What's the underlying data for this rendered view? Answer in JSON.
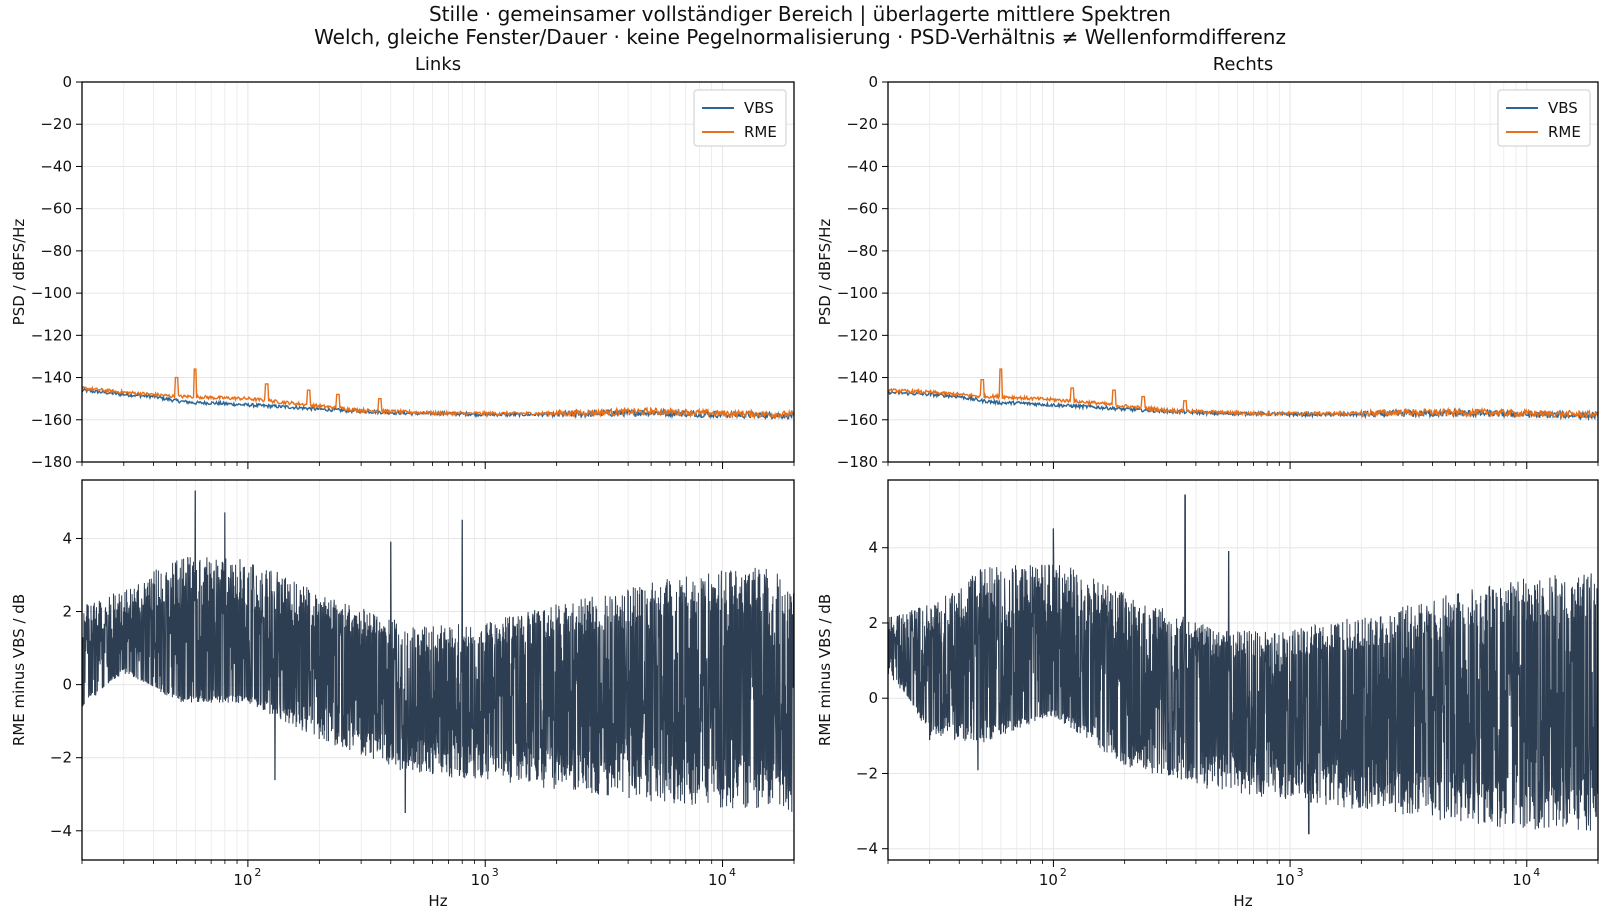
{
  "figure": {
    "title": "Stille · gemeinsamer vollständiger Bereich | überlagerte mittlere Spektren",
    "subtitle": "Welch, gleiche Fenster/Dauer · keine Pegelnormalisierung · PSD-Verhältnis ≠ Wellenformdifferenz"
  },
  "colors": {
    "vbs": "#2c6694",
    "rme": "#e8701a",
    "diff": "#2e3e52",
    "grid": "#e6e6e6"
  },
  "chart_data": [
    {
      "id": "links-psd",
      "type": "line",
      "title": "Links",
      "xlabel": "",
      "ylabel": "PSD / dBFS/Hz",
      "xscale": "log",
      "xlim": [
        20,
        20000
      ],
      "ylim": [
        -180,
        0
      ],
      "yticks": [
        0,
        -20,
        -40,
        -60,
        -80,
        -100,
        -120,
        -140,
        -160,
        -180
      ],
      "xticks": [
        100,
        1000,
        10000
      ],
      "xtick_labels": [
        "10",
        "10",
        "10"
      ],
      "xtick_exp": [
        "2",
        "3",
        "4"
      ],
      "grid": true,
      "legend": "top-right",
      "series": [
        {
          "name": "VBS",
          "x": [
            20,
            30,
            40,
            50,
            60,
            70,
            100,
            150,
            200,
            300,
            500,
            700,
            1000,
            2000,
            3000,
            5000,
            7000,
            10000,
            20000
          ],
          "values": [
            -146,
            -148,
            -149,
            -151,
            -152,
            -152,
            -153,
            -154,
            -155,
            -156,
            -157,
            -157,
            -157.5,
            -157.5,
            -157,
            -156.5,
            -157,
            -157.5,
            -158
          ]
        },
        {
          "name": "RME",
          "x": [
            20,
            30,
            40,
            50,
            60,
            70,
            100,
            150,
            200,
            300,
            500,
            700,
            1000,
            2000,
            3000,
            5000,
            7000,
            10000,
            20000
          ],
          "values": [
            -145,
            -147,
            -148,
            -149,
            -149,
            -149.5,
            -150,
            -152,
            -153.5,
            -155.5,
            -156.5,
            -157,
            -157,
            -157,
            -156.5,
            -156,
            -156.5,
            -157,
            -157.5
          ],
          "peaks": [
            [
              50,
              -140
            ],
            [
              60,
              -136
            ],
            [
              120,
              -143
            ],
            [
              180,
              -146
            ],
            [
              240,
              -148
            ],
            [
              360,
              -150
            ]
          ]
        }
      ]
    },
    {
      "id": "rechts-psd",
      "type": "line",
      "title": "Rechts",
      "xlabel": "",
      "ylabel": "PSD / dBFS/Hz",
      "xscale": "log",
      "xlim": [
        20,
        20000
      ],
      "ylim": [
        -180,
        0
      ],
      "yticks": [
        0,
        -20,
        -40,
        -60,
        -80,
        -100,
        -120,
        -140,
        -160,
        -180
      ],
      "xticks": [
        100,
        1000,
        10000
      ],
      "xtick_labels": [
        "10",
        "10",
        "10"
      ],
      "xtick_exp": [
        "2",
        "3",
        "4"
      ],
      "grid": true,
      "legend": "top-right",
      "series": [
        {
          "name": "VBS",
          "x": [
            20,
            30,
            40,
            50,
            60,
            70,
            100,
            150,
            200,
            300,
            500,
            700,
            1000,
            2000,
            3000,
            5000,
            7000,
            10000,
            20000
          ],
          "values": [
            -147,
            -148,
            -149,
            -151,
            -152,
            -152,
            -153,
            -154,
            -155,
            -156,
            -157,
            -157,
            -157.5,
            -157.5,
            -157,
            -157,
            -157,
            -157.5,
            -158
          ]
        },
        {
          "name": "RME",
          "x": [
            20,
            30,
            40,
            50,
            60,
            70,
            100,
            150,
            200,
            300,
            500,
            700,
            1000,
            2000,
            3000,
            5000,
            7000,
            10000,
            20000
          ],
          "values": [
            -146,
            -147,
            -148,
            -149,
            -149,
            -149.5,
            -150.5,
            -152,
            -153.5,
            -155.5,
            -156.5,
            -157,
            -157,
            -157,
            -156.5,
            -156.5,
            -156.5,
            -157,
            -157.5
          ],
          "peaks": [
            [
              50,
              -141
            ],
            [
              60,
              -136
            ],
            [
              120,
              -145
            ],
            [
              180,
              -146
            ],
            [
              240,
              -149
            ],
            [
              360,
              -151
            ]
          ]
        }
      ]
    },
    {
      "id": "links-diff",
      "type": "line",
      "title": "",
      "xlabel": "Hz",
      "ylabel": "RME minus VBS / dB",
      "xscale": "log",
      "xlim": [
        20,
        20000
      ],
      "ylim": [
        -4.8,
        5.6
      ],
      "yticks": [
        4,
        2,
        0,
        -2,
        -4
      ],
      "xticks": [
        100,
        1000,
        10000
      ],
      "xtick_labels": [
        "10",
        "10",
        "10"
      ],
      "xtick_exp": [
        "2",
        "3",
        "4"
      ],
      "grid": true,
      "series": [
        {
          "name": "",
          "envelope_x": [
            20,
            30,
            50,
            100,
            200,
            500,
            1000,
            2000,
            5000,
            10000,
            20000
          ],
          "upper": [
            2.2,
            2.6,
            3.5,
            3.5,
            2.5,
            1.6,
            1.7,
            2.2,
            2.8,
            3.2,
            3.2
          ],
          "lower": [
            -0.7,
            0.5,
            -0.5,
            -0.5,
            -1.5,
            -2.5,
            -2.6,
            -2.9,
            -3.2,
            -3.4,
            -3.5
          ],
          "peaks": [
            [
              60,
              5.3
            ],
            [
              80,
              4.7
            ],
            [
              400,
              3.9
            ],
            [
              800,
              4.5
            ],
            [
              460,
              -3.5
            ],
            [
              130,
              -2.6
            ]
          ]
        }
      ]
    },
    {
      "id": "rechts-diff",
      "type": "line",
      "title": "",
      "xlabel": "Hz",
      "ylabel": "RME minus VBS / dB",
      "xscale": "log",
      "xlim": [
        20,
        20000
      ],
      "ylim": [
        -4.3,
        5.8
      ],
      "yticks": [
        4,
        2,
        0,
        -2,
        -4
      ],
      "xticks": [
        100,
        1000,
        10000
      ],
      "xtick_labels": [
        "10",
        "10",
        "10"
      ],
      "xtick_exp": [
        "2",
        "3",
        "4"
      ],
      "grid": true,
      "series": [
        {
          "name": "",
          "envelope_x": [
            20,
            30,
            50,
            100,
            200,
            500,
            1000,
            2000,
            5000,
            10000,
            20000
          ],
          "upper": [
            2.2,
            2.5,
            3.5,
            3.7,
            2.8,
            1.8,
            1.8,
            2.2,
            2.8,
            3.2,
            3.4
          ],
          "lower": [
            1.0,
            -1.0,
            -1.2,
            -0.5,
            -1.8,
            -2.5,
            -2.7,
            -3.0,
            -3.3,
            -3.5,
            -3.6
          ],
          "peaks": [
            [
              360,
              5.4
            ],
            [
              100,
              4.5
            ],
            [
              30,
              -1.1
            ],
            [
              48,
              -1.9
            ],
            [
              550,
              3.9
            ],
            [
              1200,
              -3.6
            ]
          ]
        }
      ]
    }
  ]
}
